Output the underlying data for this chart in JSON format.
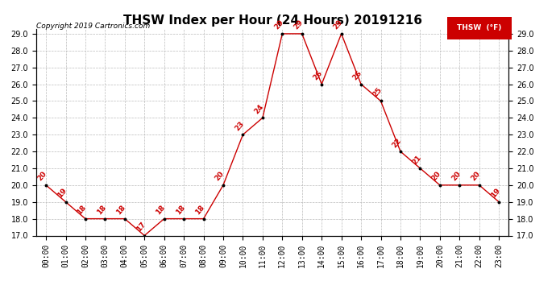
{
  "title": "THSW Index per Hour (24 Hours) 20191216",
  "copyright": "Copyright 2019 Cartronics.com",
  "legend_label": "THSW  (°F)",
  "hours": [
    "00:00",
    "01:00",
    "02:00",
    "03:00",
    "04:00",
    "05:00",
    "06:00",
    "07:00",
    "08:00",
    "09:00",
    "10:00",
    "11:00",
    "12:00",
    "13:00",
    "14:00",
    "15:00",
    "16:00",
    "17:00",
    "18:00",
    "19:00",
    "20:00",
    "21:00",
    "22:00",
    "23:00"
  ],
  "values": [
    20,
    19,
    18,
    18,
    18,
    17,
    18,
    18,
    18,
    20,
    23,
    24,
    29,
    29,
    26,
    29,
    26,
    25,
    22,
    21,
    20,
    20,
    20,
    19
  ],
  "ylim_min": 17.0,
  "ylim_max": 29.0,
  "ytick_step": 1.0,
  "line_color": "#cc0000",
  "marker_color": "#000000",
  "bg_color": "#ffffff",
  "grid_color": "#bbbbbb",
  "title_fontsize": 11,
  "copyright_fontsize": 6.5,
  "label_fontsize": 6.5,
  "tick_fontsize": 7,
  "figwidth": 6.9,
  "figheight": 3.75,
  "dpi": 100
}
